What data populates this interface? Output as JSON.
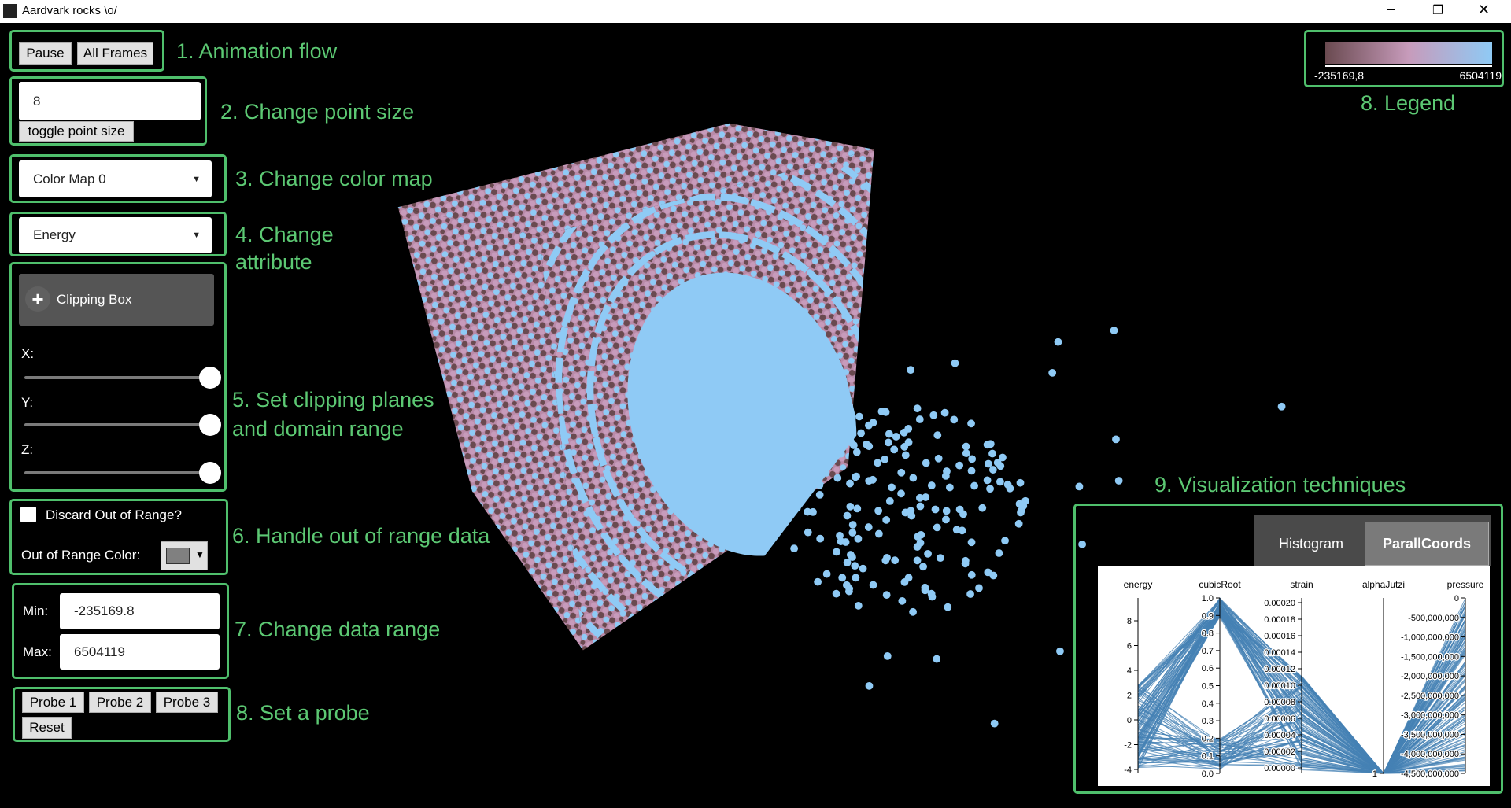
{
  "window": {
    "title": "Aardvark rocks \\o/"
  },
  "controls": {
    "animation": {
      "buttons": [
        "Pause",
        "All Frames"
      ],
      "annotation": "1. Animation flow"
    },
    "point_size": {
      "value": "8",
      "button": "toggle point size",
      "annotation": "2. Change point size"
    },
    "color_map": {
      "selected": "Color Map 0",
      "annotation": "3. Change color map"
    },
    "attribute": {
      "selected": "Energy",
      "annotation_lines": [
        "4. Change",
        "attribute"
      ]
    },
    "clipping": {
      "button": "Clipping Box",
      "sliders": [
        "X:",
        "Y:",
        "Z:"
      ],
      "annotation_lines": [
        "5. Set clipping planes",
        "and domain range"
      ]
    },
    "out_of_range": {
      "checkbox": "Discard Out of Range?",
      "color_label": "Out of Range Color:",
      "annotation": "6. Handle out of range data"
    },
    "data_range": {
      "min_label": "Min:",
      "min": "-235169.8",
      "max_label": "Max:",
      "max": "6504119",
      "annotation": "7. Change data range"
    },
    "probe": {
      "buttons": [
        "Probe 1",
        "Probe 2",
        "Probe 3",
        "Reset"
      ],
      "annotation": "8. Set a probe"
    }
  },
  "legend": {
    "min": "-235169,8",
    "max": "6504119",
    "annotation": "8. Legend"
  },
  "visualization": {
    "annotation": "9. Visualization techniques",
    "tabs": [
      "Histogram",
      "ParallCoords"
    ],
    "axes": [
      {
        "name": "energy",
        "ticks": [
          "8",
          "6",
          "4",
          "2",
          "0",
          "-2",
          "-4"
        ]
      },
      {
        "name": "cubicRoot",
        "ticks": [
          "1.0",
          "0.9",
          "0.8",
          "0.7",
          "0.6",
          "0.5",
          "0.4",
          "0.3",
          "0.2",
          "0.1",
          "0.0"
        ]
      },
      {
        "name": "strain",
        "ticks": [
          "0.00020",
          "0.00018",
          "0.00016",
          "0.00014",
          "0.00012",
          "0.00010",
          "0.00008",
          "0.00006",
          "0.00004",
          "0.00002",
          "0.00000"
        ]
      },
      {
        "name": "alphaJutzi",
        "ticks": [
          "1"
        ]
      },
      {
        "name": "pressure",
        "ticks": [
          "0",
          "-500,000,000",
          "-1,000,000,000",
          "-1,500,000,000",
          "-2,000,000,000",
          "-2,500,000,000",
          "-3,000,000,000",
          "-3,500,000,000",
          "-4,000,000,000",
          "-4,500,000,000"
        ]
      }
    ]
  }
}
